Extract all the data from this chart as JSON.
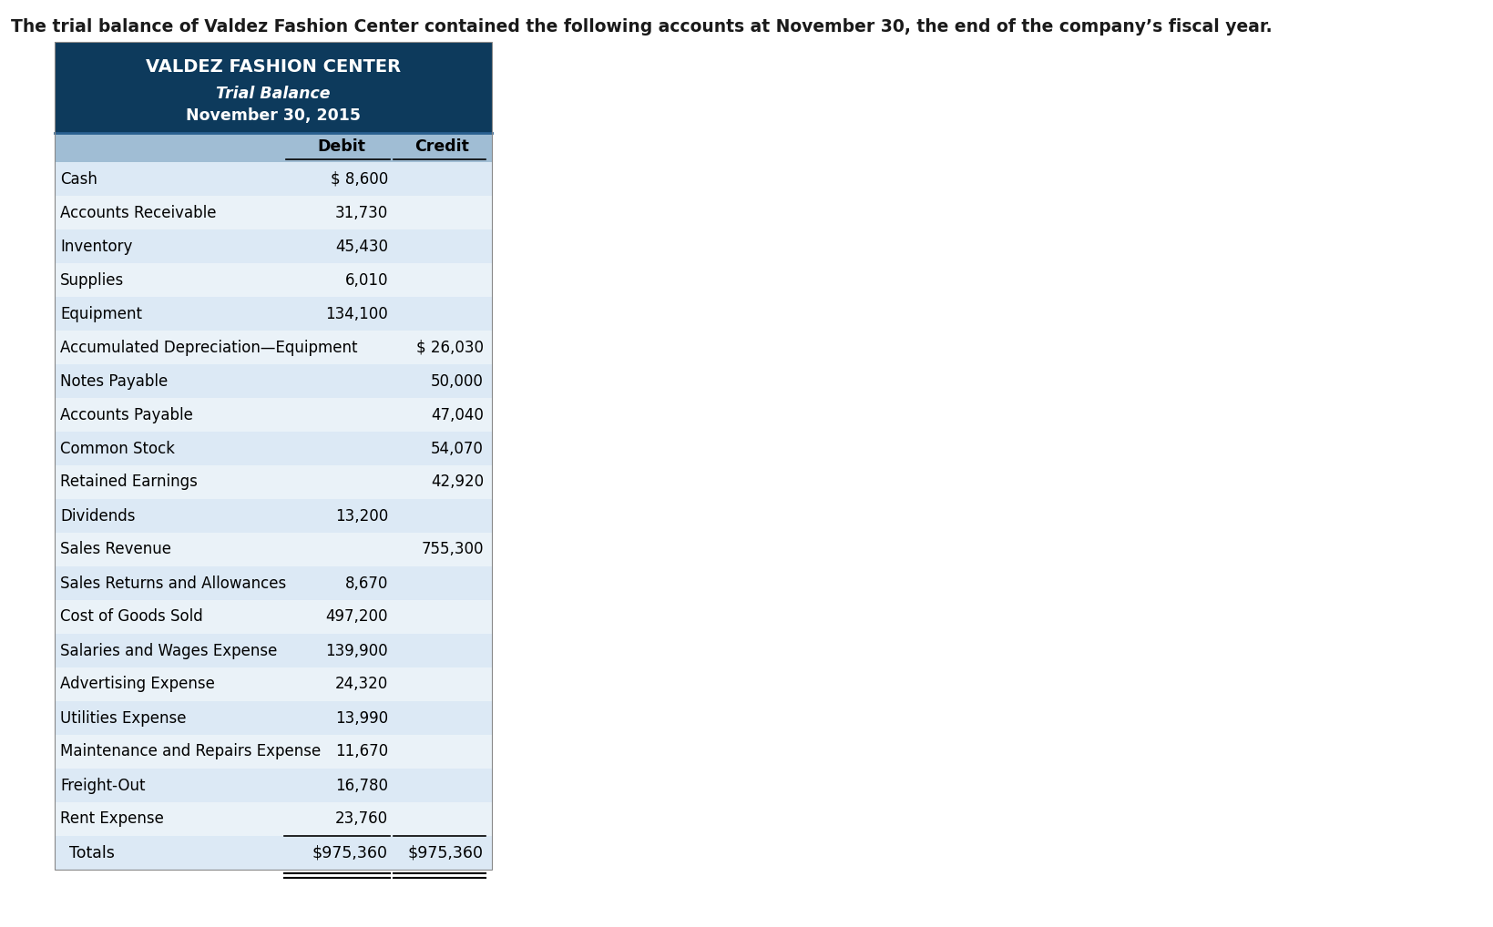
{
  "intro_text": "The trial balance of Valdez Fashion Center contained the following accounts at November 30, the end of the company’s fiscal year.",
  "header_line1": "VALDEZ FASHION CENTER",
  "header_line2": "Trial Balance",
  "header_line3": "November 30, 2015",
  "col_debit": "Debit",
  "col_credit": "Credit",
  "header_bg": "#0d3a5c",
  "header_text_color": "#ffffff",
  "subheader_bg": "#a0bdd4",
  "row_bg_even": "#dce9f5",
  "row_bg_odd": "#eaf2f8",
  "rows": [
    {
      "account": "Cash",
      "debit": "$ 8,600",
      "credit": ""
    },
    {
      "account": "Accounts Receivable",
      "debit": "31,730",
      "credit": ""
    },
    {
      "account": "Inventory",
      "debit": "45,430",
      "credit": ""
    },
    {
      "account": "Supplies",
      "debit": "6,010",
      "credit": ""
    },
    {
      "account": "Equipment",
      "debit": "134,100",
      "credit": ""
    },
    {
      "account": "Accumulated Depreciation—Equipment",
      "debit": "",
      "credit": "$ 26,030"
    },
    {
      "account": "Notes Payable",
      "debit": "",
      "credit": "50,000"
    },
    {
      "account": "Accounts Payable",
      "debit": "",
      "credit": "47,040"
    },
    {
      "account": "Common Stock",
      "debit": "",
      "credit": "54,070"
    },
    {
      "account": "Retained Earnings",
      "debit": "",
      "credit": "42,920"
    },
    {
      "account": "Dividends",
      "debit": "13,200",
      "credit": ""
    },
    {
      "account": "Sales Revenue",
      "debit": "",
      "credit": "755,300"
    },
    {
      "account": "Sales Returns and Allowances",
      "debit": "8,670",
      "credit": ""
    },
    {
      "account": "Cost of Goods Sold",
      "debit": "497,200",
      "credit": ""
    },
    {
      "account": "Salaries and Wages Expense",
      "debit": "139,900",
      "credit": ""
    },
    {
      "account": "Advertising Expense",
      "debit": "24,320",
      "credit": ""
    },
    {
      "account": "Utilities Expense",
      "debit": "13,990",
      "credit": ""
    },
    {
      "account": "Maintenance and Repairs Expense",
      "debit": "11,670",
      "credit": ""
    },
    {
      "account": "Freight-Out",
      "debit": "16,780",
      "credit": ""
    },
    {
      "account": "Rent Expense",
      "debit": "23,760",
      "credit": ""
    }
  ],
  "totals_account": "  Totals",
  "totals_debit": "$975,360",
  "totals_credit": "$975,360",
  "intro_fontsize": 13.5,
  "header1_fontsize": 14,
  "header23_fontsize": 12.5,
  "col_header_fontsize": 12.5,
  "row_fontsize": 12,
  "totals_fontsize": 12.5
}
